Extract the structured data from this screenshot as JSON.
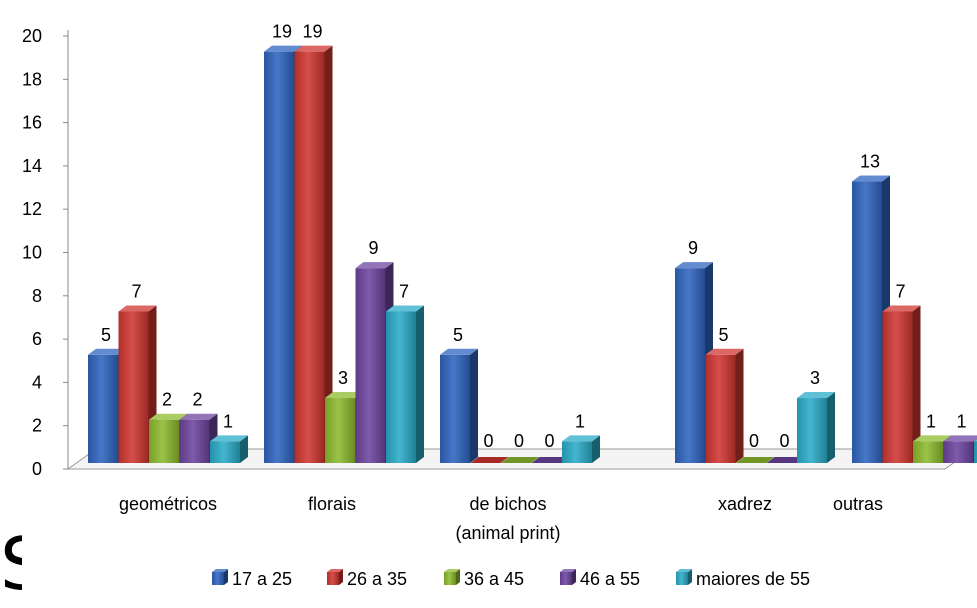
{
  "chart_data": {
    "type": "bar",
    "style": "3d-clustered-column",
    "categories": [
      "geométricos",
      "florais",
      "de bichos\n(animal print)",
      "xadrez",
      "outras"
    ],
    "series": [
      {
        "name": "17 a 25",
        "values": [
          5,
          19,
          5,
          9,
          13
        ],
        "color": "#2F65C0"
      },
      {
        "name": "26 a 35",
        "values": [
          7,
          19,
          0,
          5,
          7
        ],
        "color": "#D03631"
      },
      {
        "name": "36 a 45",
        "values": [
          2,
          3,
          0,
          0,
          1
        ],
        "color": "#8DBB2E"
      },
      {
        "name": "46 a 55",
        "values": [
          2,
          9,
          0,
          0,
          1
        ],
        "color": "#6D45A0"
      },
      {
        "name": "maiores de 55",
        "values": [
          1,
          7,
          1,
          3,
          1
        ],
        "color": "#2BACC8"
      }
    ],
    "yticks": [
      0,
      2,
      4,
      6,
      8,
      10,
      12,
      14,
      16,
      18,
      20
    ],
    "ylim": [
      0,
      20
    ],
    "grid": false,
    "data_labels": true,
    "legend_position": "bottom"
  },
  "page": {
    "corner_glyph": "S"
  }
}
